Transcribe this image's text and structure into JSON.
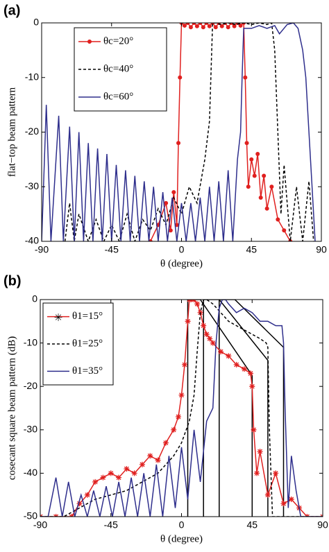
{
  "chart_data": [
    {
      "type": "line",
      "panel_label": "(a)",
      "xlabel": "θ (degree)",
      "ylabel": "flat−top beam pattern",
      "xlim": [
        -90,
        90
      ],
      "ylim": [
        -40,
        0
      ],
      "xticks": [
        -90,
        -45,
        0,
        45,
        90
      ],
      "yticks": [
        0,
        -10,
        -20,
        -30,
        -40
      ],
      "series": [
        {
          "name": "θc=20°",
          "color": "#e0201f",
          "style": "solid",
          "marker": "dot",
          "x": [
            -20,
            -15,
            -10,
            -7,
            -5,
            -3,
            -2,
            -1,
            0,
            2,
            4,
            6,
            8,
            10,
            12,
            14,
            16,
            18,
            20,
            22,
            24,
            26,
            28,
            30,
            32,
            34,
            36,
            38,
            40,
            41,
            42,
            43,
            45,
            47,
            49,
            51,
            53,
            55,
            58,
            62,
            66,
            70
          ],
          "values": [
            -40,
            -37,
            -33,
            -38,
            -31,
            -37,
            -22,
            -10,
            0,
            -0.5,
            0,
            -0.8,
            0,
            -0.6,
            0,
            -0.8,
            0,
            -0.6,
            0,
            -0.8,
            0,
            -0.6,
            0,
            -0.8,
            0,
            -0.6,
            0,
            -0.5,
            0,
            -10,
            -22,
            -30,
            -25,
            -28,
            -24,
            -32,
            -28,
            -34,
            -30,
            -36,
            -38,
            -40
          ]
        },
        {
          "name": "θc=40°",
          "color": "#000000",
          "style": "dashed",
          "marker": "none",
          "x": [
            -75,
            -72,
            -69,
            -66,
            -60,
            -55,
            -50,
            -45,
            -40,
            -35,
            -30,
            -25,
            -20,
            -15,
            -10,
            -5,
            0,
            5,
            10,
            15,
            18,
            20,
            22,
            25,
            30,
            35,
            40,
            45,
            50,
            55,
            58,
            60,
            62,
            64,
            66,
            70,
            74,
            78,
            82,
            85
          ],
          "values": [
            -40,
            -33,
            -40,
            -35,
            -40,
            -36,
            -40,
            -37,
            -40,
            -35,
            -40,
            -36,
            -38,
            -34,
            -37,
            -32,
            -35,
            -30,
            -33,
            -25,
            -18,
            0,
            0,
            -0.3,
            0,
            -0.3,
            0,
            -0.3,
            0,
            -0.3,
            0,
            -5,
            -20,
            -35,
            -26,
            -40,
            -30,
            -40,
            -29,
            -40
          ]
        },
        {
          "name": "θc=60°",
          "color": "#2e2e8c",
          "style": "solid",
          "marker": "none",
          "x": [
            -90,
            -87,
            -84,
            -79,
            -76,
            -72,
            -69,
            -66,
            -63,
            -60,
            -57,
            -54,
            -51,
            -48,
            -45,
            -42,
            -39,
            -36,
            -33,
            -30,
            -27,
            -24,
            -21,
            -18,
            -15,
            -12,
            -9,
            -6,
            -3,
            0,
            3,
            6,
            9,
            12,
            15,
            18,
            21,
            24,
            27,
            30,
            33,
            36,
            38,
            39,
            40,
            45,
            50,
            55,
            60,
            63,
            68,
            72,
            75,
            78,
            80,
            82,
            84,
            86
          ],
          "values": [
            -40,
            -15,
            -40,
            -17,
            -40,
            -19,
            -40,
            -20,
            -40,
            -22,
            -40,
            -23,
            -40,
            -24,
            -40,
            -26,
            -40,
            -27,
            -40,
            -28,
            -40,
            -29,
            -40,
            -30,
            -40,
            -31,
            -40,
            -32,
            -40,
            -33,
            -40,
            -33,
            -40,
            -32,
            -40,
            -30,
            -40,
            -29,
            -40,
            -27,
            -40,
            -25,
            -20,
            -10,
            -1,
            -1,
            -0.5,
            -1,
            -0.5,
            -2,
            -0.3,
            0,
            -1,
            -5,
            -10,
            -20,
            -30,
            -40
          ]
        }
      ]
    },
    {
      "type": "line",
      "panel_label": "(b)",
      "xlabel": "θ (degree)",
      "ylabel": "cosecant square beam pattern (dB)",
      "xlim": [
        -90,
        90
      ],
      "ylim": [
        -50,
        0
      ],
      "xticks": [
        -90,
        -45,
        0,
        45,
        90
      ],
      "yticks": [
        0,
        -10,
        -20,
        -30,
        -40,
        -50
      ],
      "series": [
        {
          "color": "#000000",
          "style": "solid",
          "marker": "none",
          "x": [
            4,
            4,
            12,
            45,
            45
          ],
          "values": [
            -50,
            0,
            0,
            -17.5,
            -50
          ]
        },
        {
          "color": "#000000",
          "style": "solid",
          "marker": "none",
          "x": [
            14,
            14,
            24,
            55,
            55
          ],
          "values": [
            -50,
            0,
            0,
            -14,
            -50
          ]
        },
        {
          "color": "#000000",
          "style": "solid",
          "marker": "none",
          "x": [
            24,
            24,
            34,
            65,
            65
          ],
          "values": [
            -50,
            0,
            0,
            -11,
            -50
          ]
        },
        {
          "name": "θ1=15°",
          "color": "#e0201f",
          "style": "solid",
          "marker": "asterisk",
          "x": [
            -90,
            -80,
            -70,
            -65,
            -60,
            -55,
            -50,
            -45,
            -40,
            -35,
            -30,
            -25,
            -20,
            -15,
            -10,
            -5,
            -2,
            0,
            2,
            4,
            5,
            6,
            8,
            10,
            12,
            14,
            16,
            18,
            20,
            25,
            30,
            35,
            40,
            44,
            45,
            46,
            48,
            50,
            55,
            60,
            65,
            70,
            75,
            80,
            90
          ],
          "values": [
            -50,
            -50,
            -50,
            -47,
            -45,
            -42,
            -41,
            -40,
            -41,
            -39,
            -40,
            -38,
            -36,
            -37,
            -33,
            -30,
            -27,
            -22,
            -15,
            -5,
            0,
            0,
            0,
            -1,
            -3,
            -6,
            -8,
            -9,
            -10,
            -12,
            -13,
            -15,
            -16,
            -17,
            -20,
            -30,
            -40,
            -35,
            -45,
            -40,
            -47,
            -46,
            -48,
            -50,
            -50
          ]
        },
        {
          "name": "θ1=25°",
          "color": "#000000",
          "style": "dashed",
          "marker": "none",
          "x": [
            -90,
            -75,
            -65,
            -55,
            -45,
            -35,
            -25,
            -15,
            -10,
            -5,
            0,
            5,
            8,
            10,
            12,
            14,
            16,
            18,
            20,
            25,
            30,
            35,
            40,
            45,
            50,
            54,
            55,
            56,
            58,
            60,
            65,
            70,
            90
          ],
          "values": [
            -50,
            -50,
            -48,
            -46,
            -45,
            -44,
            -42,
            -40,
            -38,
            -36,
            -33,
            -28,
            -22,
            -12,
            -3,
            0,
            0,
            -0.5,
            -1,
            -3,
            -5,
            -6,
            -7,
            -8,
            -9,
            -10,
            -11,
            -30,
            -50,
            -50,
            -50,
            -50,
            -50
          ]
        },
        {
          "name": "θ1=35°",
          "color": "#2e2e8c",
          "style": "solid",
          "marker": "none",
          "x": [
            -90,
            -85,
            -80,
            -76,
            -72,
            -68,
            -64,
            -60,
            -56,
            -52,
            -48,
            -44,
            -40,
            -36,
            -32,
            -28,
            -24,
            -20,
            -16,
            -12,
            -8,
            -4,
            0,
            4,
            8,
            12,
            16,
            20,
            22,
            24,
            26,
            28,
            30,
            35,
            40,
            45,
            50,
            55,
            60,
            64,
            65,
            66,
            68,
            70,
            73,
            76,
            80,
            90
          ],
          "values": [
            -50,
            -50,
            -41,
            -50,
            -42,
            -50,
            -45,
            -50,
            -44,
            -50,
            -43,
            -50,
            -42,
            -50,
            -41,
            -50,
            -40,
            -50,
            -38,
            -50,
            -36,
            -48,
            -34,
            -46,
            -30,
            -42,
            -28,
            -25,
            -10,
            -2,
            0,
            0,
            -1,
            -3,
            -2,
            -3,
            -5,
            -5,
            -6,
            -6,
            -10,
            -25,
            -48,
            -36,
            -44,
            -50,
            -50,
            -50
          ]
        }
      ]
    }
  ]
}
